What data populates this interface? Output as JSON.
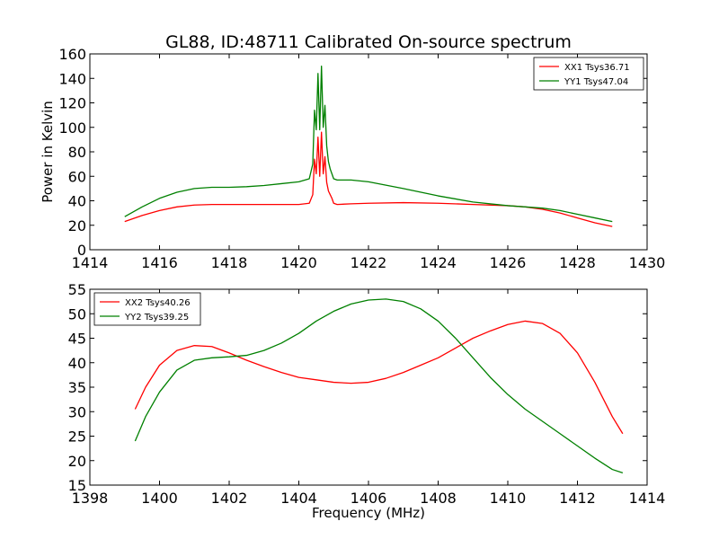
{
  "chart_data": [
    {
      "type": "line",
      "title": "GL88, ID:48711 Calibrated On-source spectrum",
      "xlabel": "",
      "ylabel": "Power in Kelvin",
      "xlim": [
        1414,
        1430
      ],
      "ylim": [
        0,
        160
      ],
      "xticks": [
        "1414",
        "1416",
        "1418",
        "1420",
        "1422",
        "1424",
        "1426",
        "1428",
        "1430"
      ],
      "yticks": [
        "0",
        "20",
        "40",
        "60",
        "80",
        "100",
        "120",
        "140",
        "160"
      ],
      "grid": false,
      "legend_position": "top-right",
      "series": [
        {
          "name": "XX1 Tsys36.71",
          "color": "#ff0000",
          "x": [
            1415.0,
            1415.5,
            1416.0,
            1416.5,
            1417.0,
            1417.5,
            1418.0,
            1418.5,
            1419.0,
            1419.5,
            1420.0,
            1420.3,
            1420.4,
            1420.45,
            1420.5,
            1420.55,
            1420.6,
            1420.65,
            1420.7,
            1420.75,
            1420.8,
            1420.85,
            1420.9,
            1420.95,
            1421.0,
            1421.1,
            1421.5,
            1422.0,
            1423.0,
            1424.0,
            1425.0,
            1426.0,
            1426.5,
            1427.0,
            1427.5,
            1428.0,
            1428.5,
            1429.0
          ],
          "y": [
            23,
            28,
            32,
            35,
            36.5,
            37,
            37,
            37,
            37,
            37,
            37,
            38,
            45,
            74,
            62,
            92,
            60,
            96,
            62,
            76,
            55,
            48,
            45,
            42,
            38,
            37,
            37.5,
            38,
            38.5,
            38,
            37,
            36,
            35,
            33,
            30,
            26,
            22,
            19
          ]
        },
        {
          "name": "YY1 Tsys47.04",
          "color": "#008000",
          "x": [
            1415.0,
            1415.5,
            1416.0,
            1416.5,
            1417.0,
            1417.5,
            1418.0,
            1418.5,
            1419.0,
            1419.5,
            1420.0,
            1420.3,
            1420.4,
            1420.45,
            1420.5,
            1420.55,
            1420.6,
            1420.65,
            1420.7,
            1420.75,
            1420.8,
            1420.85,
            1420.9,
            1420.95,
            1421.0,
            1421.1,
            1421.5,
            1422.0,
            1423.0,
            1424.0,
            1425.0,
            1426.0,
            1426.5,
            1427.0,
            1427.5,
            1428.0,
            1428.5,
            1429.0
          ],
          "y": [
            27,
            35,
            42,
            47,
            50,
            51,
            51,
            51.5,
            52.5,
            54,
            55.5,
            58,
            70,
            114,
            98,
            144,
            98,
            150,
            100,
            118,
            85,
            72,
            66,
            62,
            58,
            57,
            57,
            55.5,
            50,
            44,
            39,
            36,
            35,
            34,
            32,
            29,
            26,
            23
          ]
        }
      ]
    },
    {
      "type": "line",
      "title": "",
      "xlabel": "Frequency (MHz)",
      "ylabel": "",
      "xlim": [
        1398,
        1414
      ],
      "ylim": [
        15,
        55
      ],
      "xticks": [
        "1398",
        "1400",
        "1402",
        "1404",
        "1406",
        "1408",
        "1410",
        "1412",
        "1414"
      ],
      "yticks": [
        "15",
        "20",
        "25",
        "30",
        "35",
        "40",
        "45",
        "50",
        "55"
      ],
      "grid": false,
      "legend_position": "top-left",
      "series": [
        {
          "name": "XX2 Tsys40.26",
          "color": "#ff0000",
          "x": [
            1399.3,
            1399.6,
            1400.0,
            1400.5,
            1401.0,
            1401.5,
            1402.0,
            1402.5,
            1403.0,
            1403.5,
            1404.0,
            1404.5,
            1405.0,
            1405.5,
            1406.0,
            1406.5,
            1407.0,
            1407.5,
            1408.0,
            1408.5,
            1409.0,
            1409.5,
            1410.0,
            1410.5,
            1411.0,
            1411.5,
            1412.0,
            1412.5,
            1413.0,
            1413.3
          ],
          "y": [
            30.5,
            35,
            39.5,
            42.5,
            43.5,
            43.3,
            42,
            40.5,
            39.2,
            38,
            37,
            36.5,
            36,
            35.8,
            36,
            36.8,
            38,
            39.5,
            41,
            43,
            45,
            46.5,
            47.8,
            48.5,
            48,
            46,
            42,
            36,
            29,
            25.5
          ]
        },
        {
          "name": "YY2 Tsys39.25",
          "color": "#008000",
          "x": [
            1399.3,
            1399.6,
            1400.0,
            1400.5,
            1401.0,
            1401.5,
            1402.0,
            1402.5,
            1403.0,
            1403.5,
            1404.0,
            1404.5,
            1405.0,
            1405.5,
            1406.0,
            1406.5,
            1407.0,
            1407.5,
            1408.0,
            1408.5,
            1409.0,
            1409.5,
            1410.0,
            1410.5,
            1411.0,
            1411.5,
            1412.0,
            1412.5,
            1413.0,
            1413.3
          ],
          "y": [
            24,
            29,
            34,
            38.5,
            40.5,
            41,
            41.2,
            41.5,
            42.5,
            44,
            46,
            48.5,
            50.5,
            52,
            52.8,
            53,
            52.5,
            51,
            48.5,
            45,
            41,
            37,
            33.5,
            30.5,
            28,
            25.5,
            23,
            20.5,
            18.2,
            17.5
          ]
        }
      ]
    }
  ]
}
